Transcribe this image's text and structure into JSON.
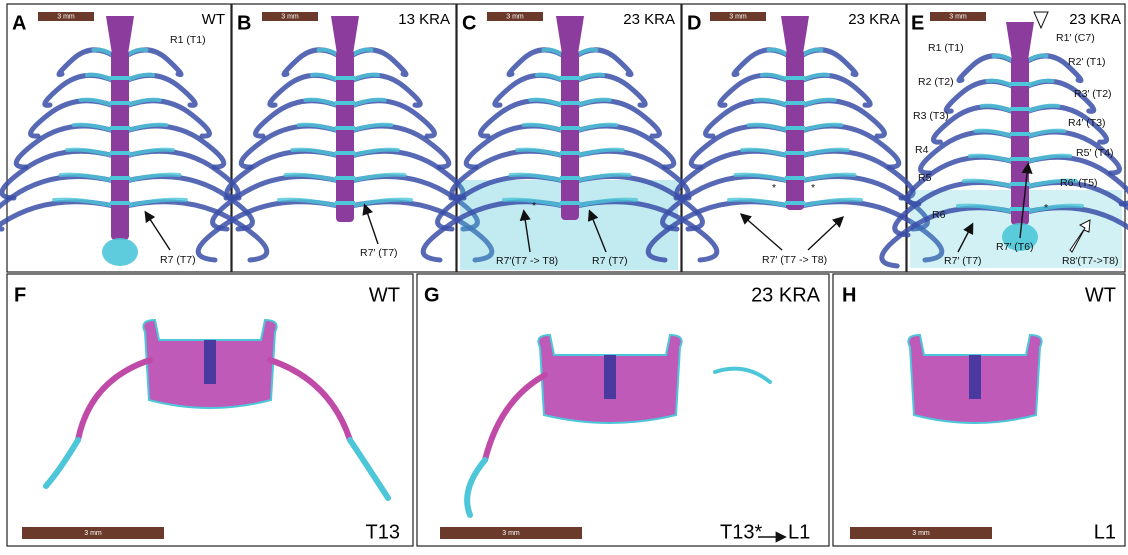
{
  "panels": [
    {
      "letter": "A",
      "genotype": "WT",
      "scale_bar": "3 mm",
      "labels": [
        "R1 (T1)",
        "R7 (T7)"
      ]
    },
    {
      "letter": "B",
      "genotype": "13 KRA",
      "scale_bar": "3 mm",
      "labels": [
        "R7′ (T7)"
      ]
    },
    {
      "letter": "C",
      "genotype": "23 KRA",
      "scale_bar": "3 mm",
      "labels": [
        "R7′(T7 -> T8)",
        "R7 (T7)",
        "*"
      ]
    },
    {
      "letter": "D",
      "genotype": "23 KRA",
      "scale_bar": "3 mm",
      "labels": [
        "R7′ (T7 -> T8)",
        "*",
        "*"
      ]
    },
    {
      "letter": "E",
      "genotype": "23 KRA",
      "scale_bar": "3 mm",
      "labels": [
        "R1 (T1)",
        "R1′ (C7)",
        "R2′ (T1)",
        "R2 (T2)",
        "R3′ (T2)",
        "R3 (T3)",
        "R4′ (T3)",
        "R4",
        "R5′ (T4)",
        "R5",
        "R6′ (T5)",
        "R6",
        "R7′ (T7)",
        "R7′ (T6)",
        "R8′(T7->T8)",
        "*"
      ]
    },
    {
      "letter": "F",
      "genotype": "WT",
      "scale_bar": "3 mm",
      "labels": [
        "T13"
      ]
    },
    {
      "letter": "G",
      "genotype": "23 KRA",
      "scale_bar": "3 mm",
      "labels": [
        "T13*",
        "L1"
      ]
    },
    {
      "letter": "H",
      "genotype": "WT",
      "scale_bar": "3 mm",
      "labels": [
        "L1"
      ]
    }
  ]
}
